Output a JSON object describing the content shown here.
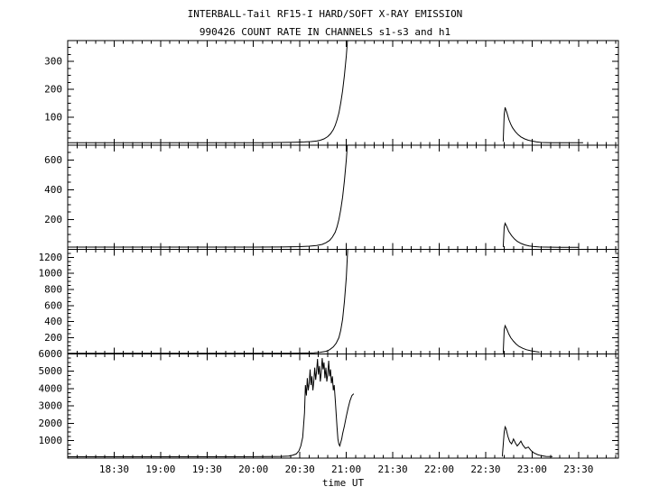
{
  "header": {
    "title": "INTERBALL-Tail RF15-I HARD/SOFT X-RAY EMISSION",
    "subtitle": "990426  COUNT RATE IN CHANNELS s1-s3 and h1"
  },
  "axis": {
    "xlabel": "time UT",
    "xlim": [
      18.0,
      23.93
    ],
    "x_minor_step": 0.1,
    "xticks": [
      18.5,
      19.0,
      19.5,
      20.0,
      20.5,
      21.0,
      21.5,
      22.0,
      22.5,
      23.0,
      23.5
    ],
    "xtick_labels": [
      "18:30",
      "19:00",
      "19:30",
      "20:00",
      "20:30",
      "21:00",
      "21:30",
      "22:00",
      "22:30",
      "23:00",
      "23:30"
    ]
  },
  "chart_data": [
    {
      "type": "line",
      "name": "s1",
      "ylim": [
        0,
        375
      ],
      "y_minor_step": 25,
      "ytick_values": [
        100,
        200,
        300
      ],
      "ytick_labels": [
        "100",
        "200",
        "300"
      ],
      "segments": [
        [
          [
            18.0,
            8
          ],
          [
            18.3,
            8
          ],
          [
            18.6,
            8
          ],
          [
            19.0,
            8
          ],
          [
            19.4,
            8
          ],
          [
            19.8,
            8
          ],
          [
            20.1,
            8
          ],
          [
            20.3,
            9
          ],
          [
            20.45,
            10
          ],
          [
            20.55,
            11
          ],
          [
            20.62,
            12
          ],
          [
            20.68,
            14
          ],
          [
            20.72,
            17
          ],
          [
            20.76,
            22
          ],
          [
            20.8,
            30
          ],
          [
            20.83,
            40
          ],
          [
            20.86,
            55
          ],
          [
            20.88,
            70
          ],
          [
            20.9,
            90
          ],
          [
            20.92,
            115
          ],
          [
            20.94,
            150
          ],
          [
            20.96,
            195
          ],
          [
            20.98,
            250
          ],
          [
            21.0,
            320
          ],
          [
            21.02,
            410
          ]
        ],
        [
          [
            22.69,
            12
          ],
          [
            22.7,
            110
          ],
          [
            22.71,
            135
          ],
          [
            22.73,
            115
          ],
          [
            22.75,
            92
          ],
          [
            22.77,
            75
          ],
          [
            22.79,
            62
          ],
          [
            22.82,
            48
          ],
          [
            22.85,
            37
          ],
          [
            22.88,
            29
          ],
          [
            22.92,
            22
          ],
          [
            22.96,
            17
          ],
          [
            23.0,
            14
          ],
          [
            23.05,
            11
          ],
          [
            23.1,
            9
          ],
          [
            23.2,
            8
          ],
          [
            23.35,
            8
          ],
          [
            23.55,
            8
          ]
        ]
      ]
    },
    {
      "type": "line",
      "name": "s2",
      "ylim": [
        0,
        700
      ],
      "y_minor_step": 50,
      "ytick_values": [
        200,
        400,
        600
      ],
      "ytick_labels": [
        "200",
        "400",
        "600"
      ],
      "segments": [
        [
          [
            18.0,
            15
          ],
          [
            18.5,
            15
          ],
          [
            19.0,
            15
          ],
          [
            19.5,
            15
          ],
          [
            20.0,
            15
          ],
          [
            20.3,
            16
          ],
          [
            20.5,
            18
          ],
          [
            20.6,
            21
          ],
          [
            20.68,
            26
          ],
          [
            20.74,
            33
          ],
          [
            20.78,
            44
          ],
          [
            20.82,
            60
          ],
          [
            20.85,
            82
          ],
          [
            20.88,
            115
          ],
          [
            20.9,
            150
          ],
          [
            20.92,
            200
          ],
          [
            20.94,
            265
          ],
          [
            20.96,
            350
          ],
          [
            20.98,
            460
          ],
          [
            21.0,
            600
          ],
          [
            21.02,
            780
          ]
        ],
        [
          [
            22.69,
            16
          ],
          [
            22.7,
            150
          ],
          [
            22.71,
            175
          ],
          [
            22.73,
            150
          ],
          [
            22.75,
            120
          ],
          [
            22.78,
            92
          ],
          [
            22.81,
            70
          ],
          [
            22.84,
            54
          ],
          [
            22.88,
            40
          ],
          [
            22.92,
            30
          ],
          [
            22.97,
            23
          ],
          [
            23.02,
            19
          ],
          [
            23.08,
            16
          ],
          [
            23.15,
            15
          ],
          [
            23.3,
            14
          ],
          [
            23.5,
            14
          ]
        ]
      ]
    },
    {
      "type": "line",
      "name": "s3",
      "ylim": [
        0,
        1300
      ],
      "y_minor_step": 50,
      "ytick_values": [
        200,
        400,
        600,
        800,
        1000,
        1200
      ],
      "ytick_labels": [
        "200",
        "400",
        "600",
        "800",
        "1000",
        "1200"
      ],
      "segments": [
        [
          [
            18.0,
            5
          ],
          [
            19.0,
            5
          ],
          [
            20.0,
            5
          ],
          [
            20.4,
            6
          ],
          [
            20.55,
            8
          ],
          [
            20.65,
            12
          ],
          [
            20.72,
            18
          ],
          [
            20.78,
            30
          ],
          [
            20.82,
            50
          ],
          [
            20.86,
            85
          ],
          [
            20.89,
            130
          ],
          [
            20.92,
            200
          ],
          [
            20.94,
            290
          ],
          [
            20.96,
            430
          ],
          [
            20.98,
            650
          ],
          [
            21.0,
            950
          ],
          [
            21.02,
            1420
          ]
        ],
        [
          [
            22.69,
            6
          ],
          [
            22.7,
            300
          ],
          [
            22.71,
            350
          ],
          [
            22.73,
            300
          ],
          [
            22.75,
            245
          ],
          [
            22.77,
            200
          ],
          [
            22.8,
            155
          ],
          [
            22.83,
            120
          ],
          [
            22.86,
            92
          ],
          [
            22.9,
            68
          ],
          [
            22.94,
            50
          ],
          [
            22.99,
            36
          ],
          [
            23.04,
            26
          ],
          [
            23.08,
            20
          ]
        ]
      ]
    },
    {
      "type": "line",
      "name": "h1",
      "ylim": [
        0,
        6000
      ],
      "y_minor_step": 250,
      "ytick_values": [
        1000,
        2000,
        3000,
        4000,
        5000,
        6000
      ],
      "ytick_labels": [
        "1000",
        "2000",
        "3000",
        "4000",
        "5000",
        "6000"
      ],
      "segments": [
        [
          [
            18.0,
            80
          ],
          [
            18.5,
            80
          ],
          [
            19.0,
            80
          ],
          [
            19.5,
            80
          ],
          [
            20.0,
            85
          ],
          [
            20.2,
            90
          ],
          [
            20.3,
            100
          ],
          [
            20.38,
            120
          ],
          [
            20.42,
            160
          ],
          [
            20.46,
            240
          ],
          [
            20.49,
            420
          ],
          [
            20.51,
            700
          ],
          [
            20.53,
            1200
          ],
          [
            20.55,
            2600
          ],
          [
            20.56,
            4200
          ],
          [
            20.57,
            3600
          ],
          [
            20.58,
            4600
          ],
          [
            20.59,
            3900
          ],
          [
            20.6,
            4300
          ],
          [
            20.61,
            5100
          ],
          [
            20.62,
            4200
          ],
          [
            20.63,
            4700
          ],
          [
            20.64,
            3900
          ],
          [
            20.65,
            4400
          ],
          [
            20.66,
            5200
          ],
          [
            20.67,
            4500
          ],
          [
            20.68,
            5000
          ],
          [
            20.69,
            5700
          ],
          [
            20.7,
            4800
          ],
          [
            20.71,
            5300
          ],
          [
            20.72,
            4400
          ],
          [
            20.73,
            4900
          ],
          [
            20.74,
            5750
          ],
          [
            20.75,
            5100
          ],
          [
            20.76,
            5500
          ],
          [
            20.77,
            4600
          ],
          [
            20.78,
            5200
          ],
          [
            20.79,
            4400
          ],
          [
            20.8,
            4800
          ],
          [
            20.81,
            5600
          ],
          [
            20.82,
            4700
          ],
          [
            20.83,
            5100
          ],
          [
            20.84,
            4300
          ],
          [
            20.85,
            4700
          ],
          [
            20.86,
            3900
          ],
          [
            20.87,
            4200
          ],
          [
            20.88,
            3400
          ],
          [
            20.89,
            2600
          ],
          [
            20.9,
            1800
          ],
          [
            20.91,
            1100
          ],
          [
            20.92,
            800
          ],
          [
            20.93,
            700
          ],
          [
            20.94,
            900
          ],
          [
            20.95,
            1100
          ],
          [
            20.96,
            1400
          ],
          [
            20.98,
            1850
          ],
          [
            21.0,
            2400
          ],
          [
            21.02,
            2900
          ],
          [
            21.04,
            3300
          ],
          [
            21.06,
            3600
          ],
          [
            21.08,
            3700
          ]
        ],
        [
          [
            22.68,
            90
          ],
          [
            22.7,
            1500
          ],
          [
            22.71,
            1800
          ],
          [
            22.72,
            1700
          ],
          [
            22.74,
            1250
          ],
          [
            22.76,
            950
          ],
          [
            22.78,
            820
          ],
          [
            22.8,
            1100
          ],
          [
            22.82,
            880
          ],
          [
            22.84,
            700
          ],
          [
            22.86,
            820
          ],
          [
            22.88,
            980
          ],
          [
            22.9,
            760
          ],
          [
            22.93,
            560
          ],
          [
            22.96,
            640
          ],
          [
            22.99,
            430
          ],
          [
            23.02,
            300
          ],
          [
            23.06,
            200
          ],
          [
            23.1,
            140
          ],
          [
            23.15,
            100
          ],
          [
            23.22,
            90
          ]
        ]
      ]
    }
  ]
}
